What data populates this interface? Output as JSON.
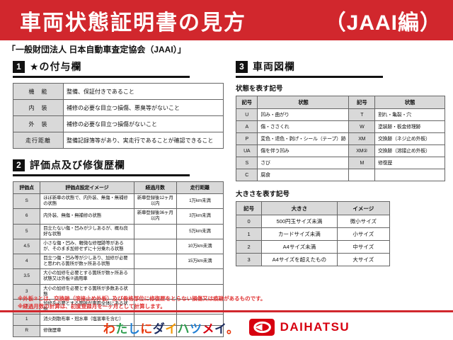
{
  "header": {
    "title": "車両状態証明書の見方",
    "edition": "（JAAI編）"
  },
  "subtitle": "「一般財団法人 日本自動車査定協会（JAAI）」",
  "sections": {
    "s1": {
      "num": "1",
      "title": "★の付与欄",
      "rows": [
        [
          "機　能",
          "整備、保証付きであること"
        ],
        [
          "内　装",
          "補修の必要な目立つ損傷、悪臭等がないこと"
        ],
        [
          "外　装",
          "補修の必要な目立つ損傷がないこと"
        ],
        [
          "走行距離",
          "整備記録簿等があり、実走行であることが確認できること"
        ]
      ]
    },
    "s2": {
      "num": "2",
      "title": "評価点及び修復歴欄",
      "headers": [
        "評価点",
        "評価点設定イメージ",
        "経過月数",
        "走行距離"
      ],
      "rows": [
        [
          "S",
          "ほぼ新車の状態で、内外装、無傷・無補修の状態",
          "新車登録後12ヶ月以内",
          "1万km未満"
        ],
        [
          "6",
          "内外装、無傷・無補修の状態",
          "新車登録後36ヶ月以内",
          "3万km未満"
        ],
        [
          "5",
          "目立たない傷・凹みが少しあるが、概ね良好な状態",
          "",
          "5万km未満"
        ],
        [
          "4.5",
          "小さな傷・凹み、軽微な修理跡等があるが、そのまま加修せずに十分乗れる状態",
          "",
          "10万km未満"
        ],
        [
          "4",
          "目立つ傷・凹み等が少しあり、加修が必要と思われる箇所が数ヶ所ある状態",
          "",
          "15万km未満"
        ],
        [
          "3.5",
          "大小の加修を必要とする箇所が数ヶ所ある状態又は外板②適用車",
          "",
          ""
        ],
        [
          "3",
          "大小の加修を必要とする箇所が多数ある状態",
          "",
          ""
        ],
        [
          "2",
          "加修を必要とする箇所が車両全体にある状態",
          "",
          ""
        ],
        [
          "1",
          "消火剤散布車・冠水車（塩害車を含む）",
          "",
          ""
        ],
        [
          "R",
          "修復歴車",
          "",
          ""
        ]
      ]
    },
    "s3": {
      "num": "3",
      "title": "車両図欄",
      "condition": {
        "label": "状態を表す記号",
        "headers": [
          "記号",
          "状態",
          "記号",
          "状態"
        ],
        "rows": [
          [
            "U",
            "凹み・曲がり",
            "T",
            "割れ・亀裂・穴"
          ],
          [
            "A",
            "傷・ささくれ",
            "W",
            "塗装跡・板金修理跡"
          ],
          [
            "P",
            "変色・退色・剥げ・シール（テープ）跡",
            "XM",
            "交換跡（ネジ止め外板）"
          ],
          [
            "UA",
            "傷を伴う凹み",
            "XM②",
            "交換跡（溶接止め外板）"
          ],
          [
            "S",
            "さび",
            "M",
            "修復歴"
          ],
          [
            "C",
            "腐食",
            "",
            ""
          ]
        ]
      },
      "size": {
        "label": "大きさを表す記号",
        "headers": [
          "記号",
          "大きさ",
          "イメージ"
        ],
        "rows": [
          [
            "0",
            "500円玉サイズ未満",
            "微小サイズ"
          ],
          [
            "1",
            "カードサイズ未満",
            "小サイズ"
          ],
          [
            "2",
            "A4サイズ未満",
            "中サイズ"
          ],
          [
            "3",
            "A4サイズを超えたもの",
            "大サイズ"
          ]
        ]
      }
    }
  },
  "footnotes": [
    "※外板②とは、交換跡（溶接止め外板）及び骨格部位に修復歴をとらない損傷又は痕跡があるものです。",
    "※経過月数の計算は、初度登録月を一ヶ月として計算します。"
  ],
  "footer": {
    "slogan": "わたしにダイハツメイ。",
    "slogan_colors": [
      "#e8380d",
      "#2e9e4f",
      "#1f7fd4",
      "#e8380d",
      "#1a2a5e",
      "#f29600",
      "#2e9e4f",
      "#1f7fd4",
      "#d7000f",
      "#1a2a5e",
      "#e8380d"
    ],
    "brand": "DAIHATSU",
    "brand_color": "#d7000f"
  }
}
